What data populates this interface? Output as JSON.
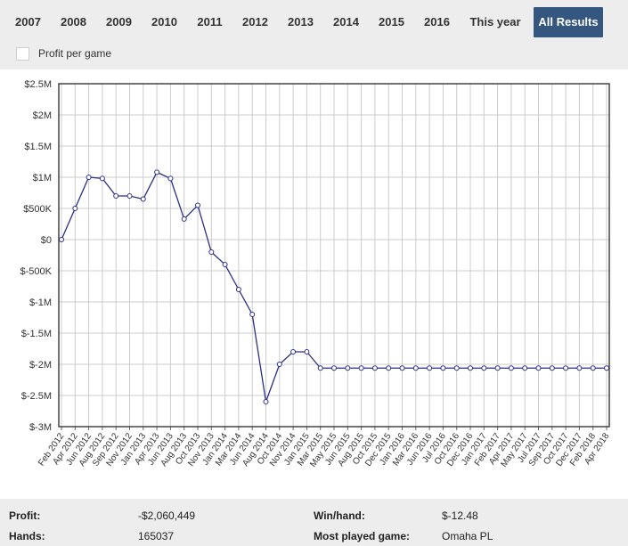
{
  "tabs": [
    {
      "label": "2007",
      "active": false
    },
    {
      "label": "2008",
      "active": false
    },
    {
      "label": "2009",
      "active": false
    },
    {
      "label": "2010",
      "active": false
    },
    {
      "label": "2011",
      "active": false
    },
    {
      "label": "2012",
      "active": false
    },
    {
      "label": "2013",
      "active": false
    },
    {
      "label": "2014",
      "active": false
    },
    {
      "label": "2015",
      "active": false
    },
    {
      "label": "2016",
      "active": false
    },
    {
      "label": "This year",
      "active": false
    },
    {
      "label": "All Results",
      "active": true
    }
  ],
  "options": {
    "profit_per_game_label": "Profit per game",
    "profit_per_game_checked": false
  },
  "colors": {
    "accent": "#34567f",
    "line": "#2b2f86",
    "grid": "#cccccc",
    "panel": "#ededed"
  },
  "chart_data": {
    "type": "line",
    "title": "",
    "xlabel": "",
    "ylabel": "",
    "ylim": [
      -3000000,
      2500000
    ],
    "yticks": [
      2500000,
      2000000,
      1500000,
      1000000,
      500000,
      0,
      -500000,
      -1000000,
      -1500000,
      -2000000,
      -2500000,
      -3000000
    ],
    "ytick_labels": [
      "$2.5M",
      "$2M",
      "$1.5M",
      "$1M",
      "$500K",
      "$0",
      "$-500K",
      "$-1M",
      "$-1.5M",
      "$-2M",
      "$-2.5M",
      "$-3M"
    ],
    "xtick_labels": [
      "Feb 2012",
      "Apr 2012",
      "Jun 2012",
      "Aug 2012",
      "Sep 2012",
      "Nov 2012",
      "Jan 2013",
      "Apr 2013",
      "Jun 2013",
      "Aug 2013",
      "Oct 2013",
      "Nov 2013",
      "Jan 2014",
      "Mar 2014",
      "Jun 2014",
      "Aug 2014",
      "Oct 2014",
      "Nov 2014",
      "Jan 2015",
      "Mar 2015",
      "May 2015",
      "Jun 2015",
      "Aug 2015",
      "Oct 2015",
      "Dec 2015",
      "Jan 2016",
      "Mar 2016",
      "Jun 2016",
      "Jul 2016",
      "Oct 2016",
      "Dec 2016",
      "Jan 2017",
      "Feb 2017",
      "Apr 2017",
      "May 2017",
      "Jul 2017",
      "Sep 2017",
      "Oct 2017",
      "Dec 2017",
      "Feb 2018",
      "Apr 2018"
    ],
    "grid": true,
    "legend": "none",
    "series": [
      {
        "values": [
          0,
          500000,
          1000000,
          980000,
          700000,
          700000,
          650000,
          1080000,
          980000,
          330000,
          550000,
          -200000,
          -400000,
          -800000,
          -1200000,
          -2600000,
          -2000000,
          -1800000,
          -1800000,
          -2060449,
          -2060449,
          -2060449,
          -2060449,
          -2060449,
          -2060449,
          -2060449,
          -2060449,
          -2060449,
          -2060449,
          -2060449,
          -2060449,
          -2060449,
          -2060449,
          -2060449,
          -2060449,
          -2060449,
          -2060449,
          -2060449,
          -2060449,
          -2060449,
          -2060449
        ]
      }
    ]
  },
  "stats": {
    "profit_label": "Profit:",
    "profit_value": "-$2,060,449",
    "hands_label": "Hands:",
    "hands_value": "165037",
    "winhand_label": "Win/hand:",
    "winhand_value": "$-12.48",
    "game_label": "Most played game:",
    "game_value": "Omaha PL"
  }
}
